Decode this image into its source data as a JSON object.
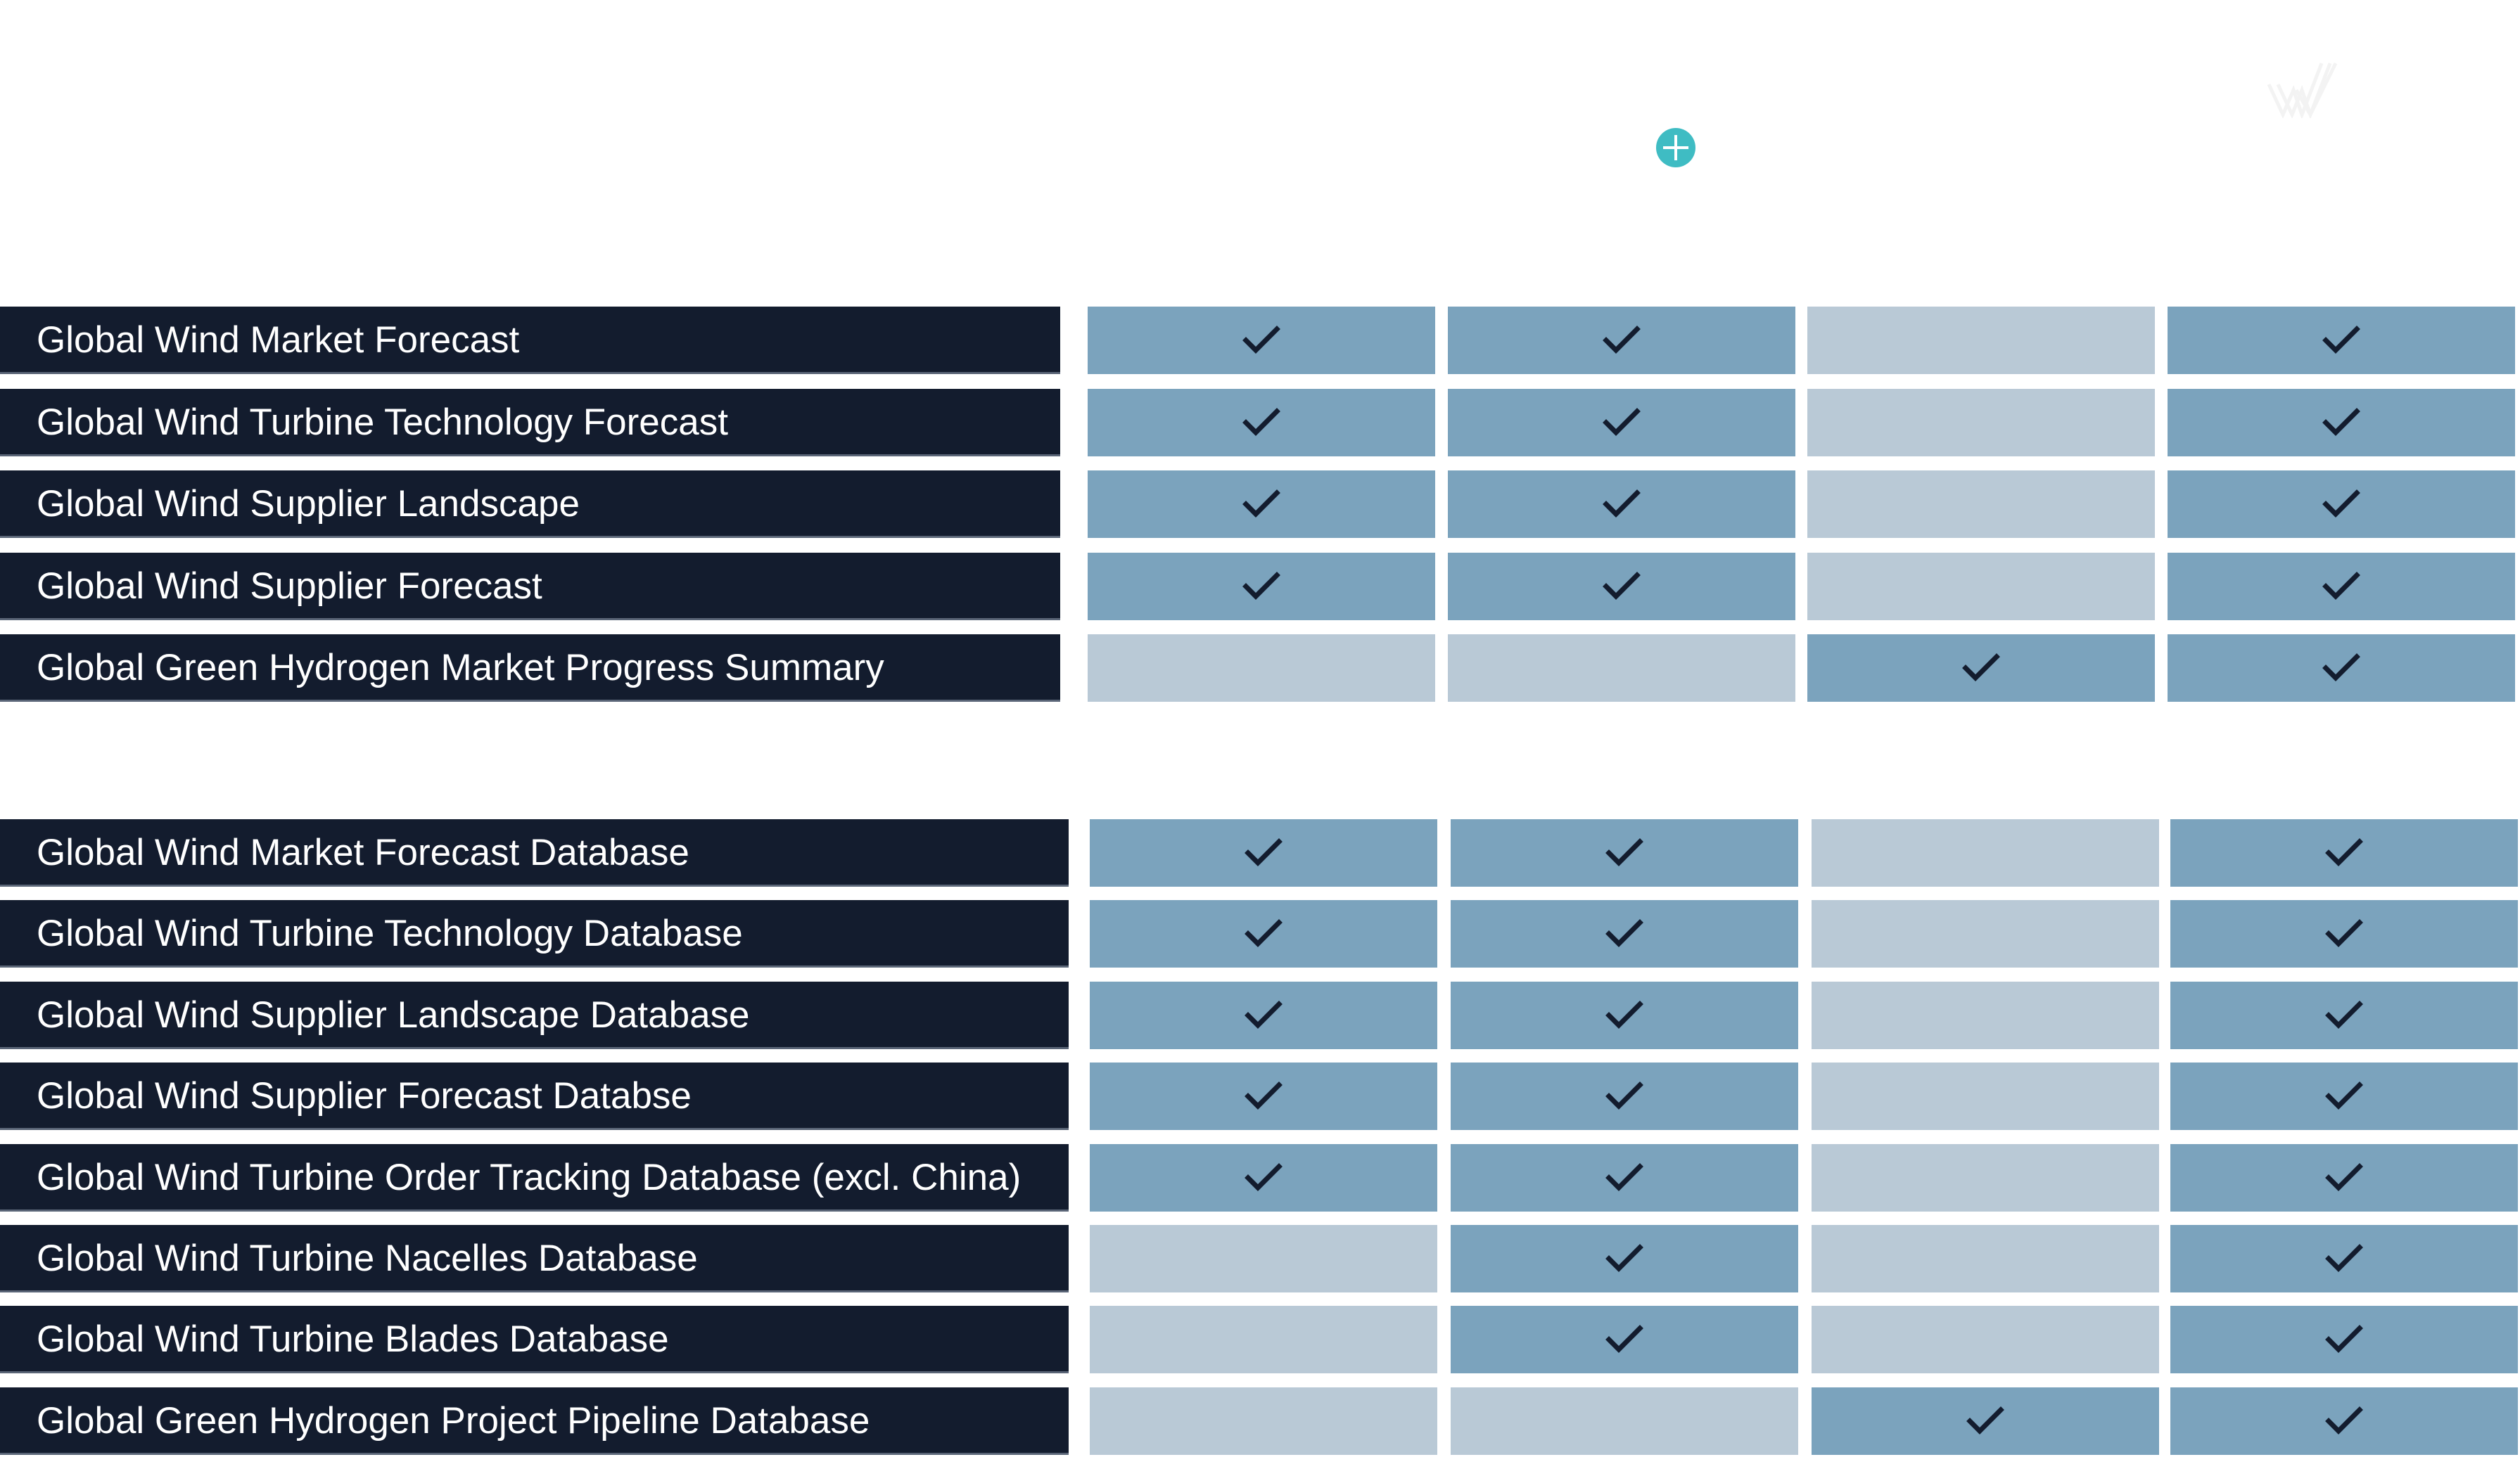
{
  "header": {
    "add_icon": "plus-circle-icon",
    "logo": "W-logo-watermark"
  },
  "colors": {
    "label_bg": "#131c2e",
    "included": "#7ba3bd",
    "not_included": "#b9c9d6",
    "accent": "#3fbcc3"
  },
  "groups": [
    {
      "rows": [
        {
          "label": "Global Wind Market Forecast",
          "cells": [
            true,
            true,
            false,
            true
          ]
        },
        {
          "label": "Global Wind Turbine Technology Forecast",
          "cells": [
            true,
            true,
            false,
            true
          ]
        },
        {
          "label": "Global Wind Supplier Landscape",
          "cells": [
            true,
            true,
            false,
            true
          ]
        },
        {
          "label": "Global Wind Supplier Forecast",
          "cells": [
            true,
            true,
            false,
            true
          ]
        },
        {
          "label": "Global Green Hydrogen Market Progress Summary",
          "cells": [
            false,
            false,
            true,
            true
          ]
        }
      ]
    },
    {
      "rows": [
        {
          "label": "Global Wind Market Forecast Database",
          "cells": [
            true,
            true,
            false,
            true
          ]
        },
        {
          "label": "Global Wind Turbine Technology Database",
          "cells": [
            true,
            true,
            false,
            true
          ]
        },
        {
          "label": "Global Wind Supplier Landscape Database",
          "cells": [
            true,
            true,
            false,
            true
          ]
        },
        {
          "label": "Global Wind Supplier Forecast Databse",
          "cells": [
            true,
            true,
            false,
            true
          ]
        },
        {
          "label": "Global Wind Turbine Order Tracking Database (excl. China)",
          "cells": [
            true,
            true,
            false,
            true
          ]
        },
        {
          "label": "Global Wind Turbine Nacelles Database",
          "cells": [
            false,
            true,
            false,
            true
          ]
        },
        {
          "label": "Global Wind Turbine Blades Database",
          "cells": [
            false,
            true,
            false,
            true
          ]
        },
        {
          "label": "Global Green Hydrogen Project Pipeline Database",
          "cells": [
            false,
            false,
            true,
            true
          ]
        }
      ]
    }
  ]
}
